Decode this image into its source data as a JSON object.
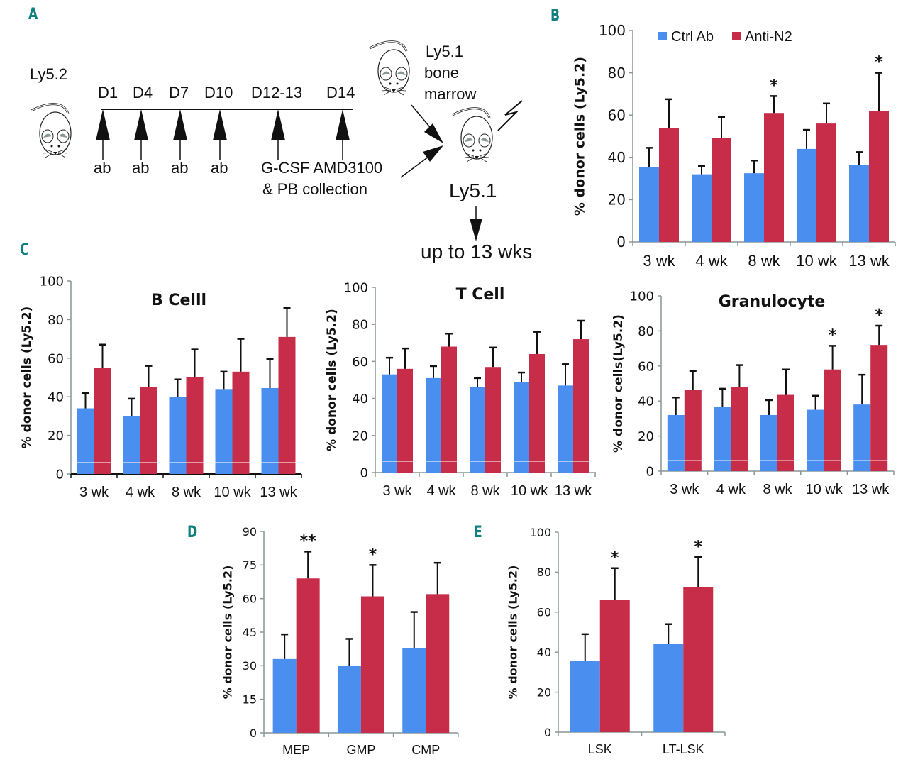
{
  "panel_letters": {
    "A": "A",
    "B": "B",
    "C": "C",
    "D": "D",
    "E": "E"
  },
  "colors": {
    "ctrl": "#4a8ff0",
    "anti": "#c72c48",
    "axis": "#8a9696",
    "error": "#111111",
    "letter": "#0f7f7f"
  },
  "diagram": {
    "donor_label": "Ly5.2",
    "timeline_days": [
      "D1",
      "D4",
      "D7",
      "D10",
      "D12-13",
      "D14"
    ],
    "treatments": [
      "ab",
      "ab",
      "ab",
      "ab"
    ],
    "mobilization_line1": "G-CSF AMD3100",
    "mobilization_line2": "& PB collection",
    "bm_donor_line1": "Ly5.1",
    "bm_donor_line2": "bone",
    "bm_donor_line3": "marrow",
    "recipient_label": "Ly5.1",
    "followup": "up to 13 wks"
  },
  "chart_data": [
    {
      "id": "B",
      "type": "bar",
      "title": "",
      "xlabel": "",
      "ylabel": "% donor cells (Ly5.2)",
      "ylim": [
        0,
        100
      ],
      "yticks": [
        0,
        20,
        40,
        60,
        80,
        100
      ],
      "categories": [
        "3 wk",
        "4 wk",
        "8 wk",
        "10 wk",
        "13 wk"
      ],
      "legend": {
        "placement": "top",
        "entries": [
          "Ctrl Ab",
          "Anti-N2"
        ]
      },
      "series": [
        {
          "name": "Ctrl Ab",
          "values": [
            35.5,
            32,
            32.5,
            44,
            36.5
          ],
          "errors": [
            9,
            4,
            6,
            9,
            6
          ]
        },
        {
          "name": "Anti-N2",
          "values": [
            54,
            49,
            61,
            56,
            62
          ],
          "errors": [
            13.5,
            10,
            8,
            9.5,
            18
          ]
        }
      ],
      "annotations": [
        "",
        "",
        "*",
        "",
        "*"
      ],
      "grid": false
    },
    {
      "id": "C1",
      "type": "bar",
      "title": "B Celll",
      "xlabel": "",
      "ylabel": "% donor cells (Ly5.2)",
      "ylim": [
        0,
        100
      ],
      "yticks": [
        0,
        20,
        40,
        60,
        80,
        100
      ],
      "categories": [
        "3 wk",
        "4 wk",
        "8 wk",
        "10 wk",
        "13 wk"
      ],
      "series": [
        {
          "name": "Ctrl Ab",
          "values": [
            34,
            30,
            40,
            44,
            44.5
          ],
          "errors": [
            8,
            9,
            9,
            9,
            15
          ]
        },
        {
          "name": "Anti-N2",
          "values": [
            55,
            45,
            50,
            53,
            71
          ],
          "errors": [
            12,
            11,
            14.5,
            17,
            15
          ]
        }
      ],
      "annotations": [
        "",
        "",
        "",
        "",
        ""
      ],
      "grid": false
    },
    {
      "id": "C2",
      "type": "bar",
      "title": "T Cell",
      "xlabel": "",
      "ylabel": "% donor cells (Ly5.2)",
      "ylim": [
        0,
        100
      ],
      "yticks": [
        0,
        20,
        40,
        60,
        80,
        100
      ],
      "categories": [
        "3 wk",
        "4 wk",
        "8 wk",
        "10 wk",
        "13 wk"
      ],
      "series": [
        {
          "name": "Ctrl Ab",
          "values": [
            53,
            51,
            46,
            49,
            47
          ],
          "errors": [
            9,
            6.5,
            5,
            5,
            11.5
          ]
        },
        {
          "name": "Anti-N2",
          "values": [
            56,
            68,
            57,
            64,
            72
          ],
          "errors": [
            11,
            7,
            10.5,
            12,
            10
          ]
        }
      ],
      "annotations": [
        "",
        "",
        "",
        "",
        ""
      ],
      "grid": false
    },
    {
      "id": "C3",
      "type": "bar",
      "title": "Granulocyte",
      "xlabel": "",
      "ylabel": "% donor cells(Ly5.2)",
      "ylim": [
        0,
        100
      ],
      "yticks": [
        0,
        20,
        40,
        60,
        80,
        100
      ],
      "categories": [
        "3 wk",
        "4 wk",
        "8 wk",
        "10 wk",
        "13 wk"
      ],
      "series": [
        {
          "name": "Ctrl Ab",
          "values": [
            32,
            36.5,
            32,
            35,
            38
          ],
          "errors": [
            10,
            10.5,
            8.5,
            8,
            17
          ]
        },
        {
          "name": "Anti-N2",
          "values": [
            46.5,
            48,
            43.5,
            58,
            72
          ],
          "errors": [
            10.5,
            12.5,
            14.5,
            13.5,
            11
          ]
        }
      ],
      "annotations": [
        "",
        "",
        "",
        "*",
        "*"
      ],
      "grid": false
    },
    {
      "id": "D",
      "type": "bar",
      "title": "",
      "xlabel": "",
      "ylabel": "% donor cells (Ly5.2)",
      "ylim": [
        0,
        90
      ],
      "yticks": [
        0,
        15,
        30,
        45,
        60,
        75,
        90
      ],
      "categories": [
        "MEP",
        "GMP",
        "CMP"
      ],
      "series": [
        {
          "name": "Ctrl Ab",
          "values": [
            33,
            30,
            38
          ],
          "errors": [
            11,
            12,
            16
          ]
        },
        {
          "name": "Anti-N2",
          "values": [
            69,
            61,
            62
          ],
          "errors": [
            12,
            14,
            14
          ]
        }
      ],
      "annotations": [
        "**",
        "*",
        ""
      ],
      "grid": false
    },
    {
      "id": "E",
      "type": "bar",
      "title": "",
      "xlabel": "",
      "ylabel": "% donor cells (Ly5.2)",
      "ylim": [
        0,
        100
      ],
      "yticks": [
        0,
        20,
        40,
        60,
        80,
        100
      ],
      "categories": [
        "LSK",
        "LT-LSK"
      ],
      "series": [
        {
          "name": "Ctrl Ab",
          "values": [
            35.5,
            44
          ],
          "errors": [
            13.5,
            10
          ]
        },
        {
          "name": "Anti-N2",
          "values": [
            66,
            72.5
          ],
          "errors": [
            16,
            15
          ]
        }
      ],
      "annotations": [
        "*",
        "*"
      ],
      "grid": false
    }
  ]
}
